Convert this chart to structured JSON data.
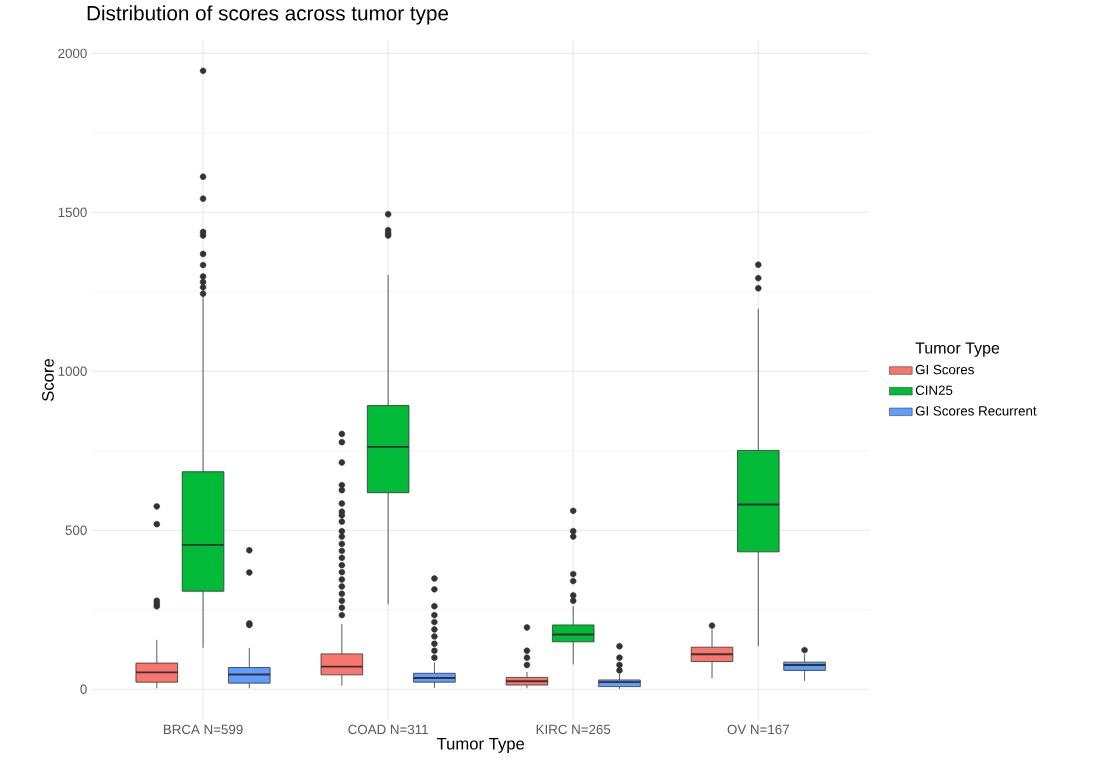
{
  "chart_data": {
    "type": "box",
    "title": "Distribution of scores across tumor type",
    "xlabel": "Tumor Type",
    "ylabel": "Score",
    "legend_title": "Tumor Type",
    "categories": [
      "BRCA N=599",
      "COAD N=311",
      "KIRC N=265",
      "OV N=167"
    ],
    "series": [
      {
        "name": "GI Scores",
        "color": "#f8766d",
        "boxes": [
          {
            "low": 3,
            "q1": 22,
            "median": 53,
            "q3": 82,
            "high": 155,
            "outliers": [
              575,
              519,
              278,
              269,
              261
            ]
          },
          {
            "low": 11,
            "q1": 45,
            "median": 71,
            "q3": 111,
            "high": 205,
            "outliers": [
              803,
              777,
              713,
              642,
              626,
              584,
              558,
              547,
              527,
              497,
              480,
              457,
              435,
              413,
              390,
              368,
              345,
              323,
              300,
              278,
              256,
              233
            ]
          },
          {
            "low": 3,
            "q1": 13,
            "median": 25,
            "q3": 37,
            "high": 54,
            "outliers": [
              194,
              121,
              99,
              76
            ]
          },
          {
            "low": 34,
            "q1": 87,
            "median": 110,
            "q3": 132,
            "high": 188,
            "outliers": [
              200
            ]
          }
        ]
      },
      {
        "name": "CIN25",
        "color": "#00ba38",
        "boxes": [
          {
            "low": 130,
            "q1": 308,
            "median": 454,
            "q3": 684,
            "high": 1237,
            "outliers": [
              1945,
              1612,
              1543,
              1438,
              1427,
              1369,
              1334,
              1298,
              1281,
              1264,
              1244
            ]
          },
          {
            "low": 267,
            "q1": 618,
            "median": 762,
            "q3": 892,
            "high": 1303,
            "outliers": [
              1494,
              1444,
              1435,
              1427
            ]
          },
          {
            "low": 78,
            "q1": 149,
            "median": 172,
            "q3": 202,
            "high": 261,
            "outliers": [
              561,
              497,
              480,
              362,
              340,
              295,
              278
            ]
          },
          {
            "low": 135,
            "q1": 432,
            "median": 581,
            "q3": 751,
            "high": 1197,
            "outliers": [
              1335,
              1293,
              1261
            ]
          }
        ]
      },
      {
        "name": "GI Scores Recurrent",
        "color": "#619cff",
        "boxes": [
          {
            "low": 3,
            "q1": 19,
            "median": 46,
            "q3": 68,
            "high": 130,
            "outliers": [
              437,
              367,
              207,
              202
            ]
          },
          {
            "low": 4,
            "q1": 22,
            "median": 35,
            "q3": 50,
            "high": 84,
            "outliers": [
              348,
              314,
              261,
              233,
              211,
              188,
              166,
              143,
              121,
              99
            ]
          },
          {
            "low": 1,
            "q1": 8,
            "median": 22,
            "q3": 29,
            "high": 48,
            "outliers": [
              135,
              99,
              76,
              59
            ]
          },
          {
            "low": 26,
            "q1": 59,
            "median": 76,
            "q3": 85,
            "high": 110,
            "outliers": [
              123
            ]
          }
        ]
      }
    ],
    "ylim": [
      -97,
      2042
    ],
    "yticks": [
      0,
      500,
      1000,
      1500,
      2000
    ],
    "grid": true,
    "legend": "right"
  }
}
